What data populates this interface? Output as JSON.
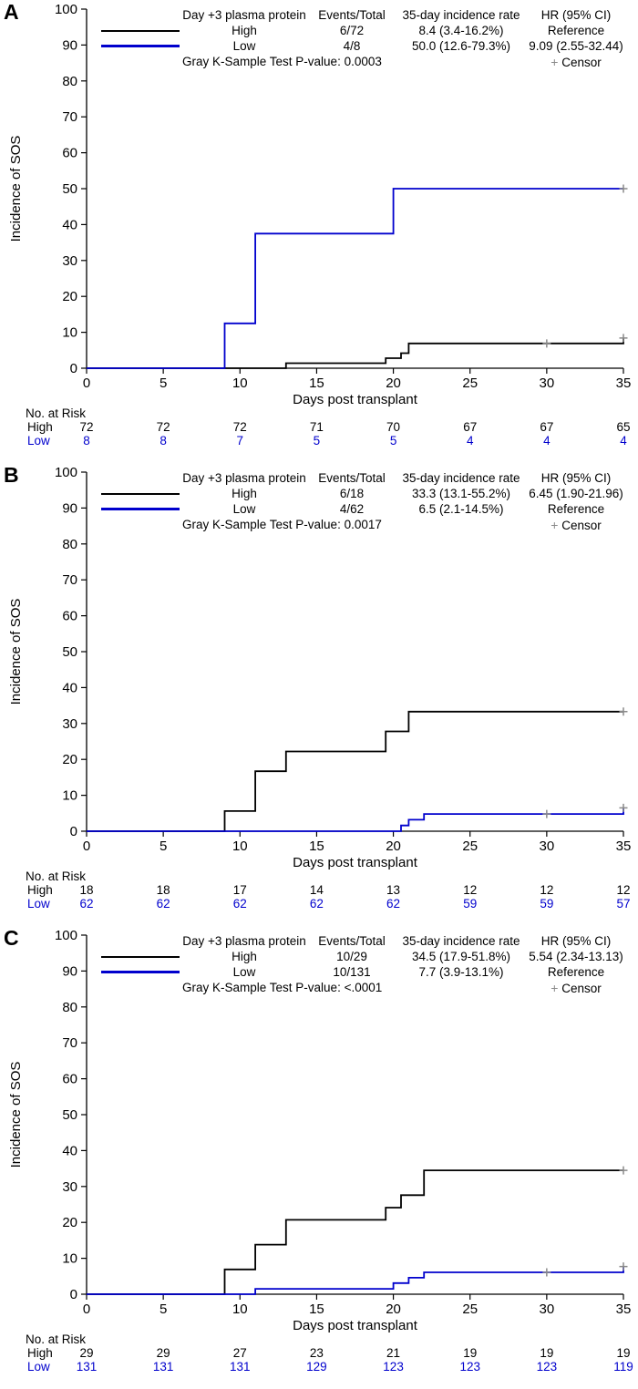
{
  "colors": {
    "high": "#000000",
    "low": "#0000cd",
    "censor": "#8a8a8a",
    "axis": "#000000"
  },
  "censor_marker": "+",
  "chart_data": [
    {
      "label": "A",
      "type": "line",
      "legend": {
        "header": [
          "Day +3 plasma protein",
          "Events/Total",
          "35-day incidence rate",
          "HR (95% CI)"
        ],
        "rows": [
          {
            "group": "High",
            "events_total": "6/72",
            "incidence": "8.4 (3.4-16.2%)",
            "hr": "Reference"
          },
          {
            "group": "Low",
            "events_total": "4/8",
            "incidence": "50.0 (12.6-79.3%)",
            "hr": "9.09 (2.55-32.44)"
          }
        ],
        "pvalue": "Gray K-Sample Test P-value: 0.0003",
        "censor_label": "Censor"
      },
      "chart": {
        "xlabel": "Days post transplant",
        "ylabel": "Incidence of SOS",
        "xlim": [
          0,
          35
        ],
        "ylim": [
          0,
          100
        ],
        "xticks": [
          0,
          5,
          10,
          15,
          20,
          25,
          30,
          35
        ],
        "yticks": [
          0,
          10,
          20,
          30,
          40,
          50,
          60,
          70,
          80,
          90,
          100
        ],
        "grid": false,
        "series": [
          {
            "name": "High",
            "color_key": "high",
            "points": [
              [
                0,
                0
              ],
              [
                13,
                1.4
              ],
              [
                19.5,
                2.8
              ],
              [
                20.5,
                4.2
              ],
              [
                21,
                6.9
              ],
              [
                35,
                8.4
              ]
            ],
            "censors": [
              [
                30,
                6.9
              ],
              [
                35,
                8.4
              ]
            ]
          },
          {
            "name": "Low",
            "color_key": "low",
            "points": [
              [
                0,
                0
              ],
              [
                9,
                12.5
              ],
              [
                11,
                37.5
              ],
              [
                20,
                50
              ],
              [
                35,
                50
              ]
            ],
            "censors": [
              [
                35,
                50
              ]
            ]
          }
        ]
      },
      "risk_table": {
        "title": "No. at Risk",
        "days": [
          0,
          5,
          10,
          15,
          20,
          25,
          30,
          35
        ],
        "rows": [
          {
            "label": "High",
            "color_key": "high",
            "values": [
              72,
              72,
              72,
              71,
              70,
              67,
              67,
              65
            ]
          },
          {
            "label": "Low",
            "color_key": "low",
            "values": [
              8,
              8,
              7,
              5,
              5,
              4,
              4,
              4
            ]
          }
        ]
      }
    },
    {
      "label": "B",
      "type": "line",
      "legend": {
        "header": [
          "Day +3 plasma protein",
          "Events/Total",
          "35-day incidence rate",
          "HR (95% CI)"
        ],
        "rows": [
          {
            "group": "High",
            "events_total": "6/18",
            "incidence": "33.3 (13.1-55.2%)",
            "hr": "6.45 (1.90-21.96)"
          },
          {
            "group": "Low",
            "events_total": "4/62",
            "incidence": "6.5 (2.1-14.5%)",
            "hr": "Reference"
          }
        ],
        "pvalue": "Gray K-Sample Test P-value: 0.0017",
        "censor_label": "Censor"
      },
      "chart": {
        "xlabel": "Days post transplant",
        "ylabel": "Incidence of SOS",
        "xlim": [
          0,
          35
        ],
        "ylim": [
          0,
          100
        ],
        "xticks": [
          0,
          5,
          10,
          15,
          20,
          25,
          30,
          35
        ],
        "yticks": [
          0,
          10,
          20,
          30,
          40,
          50,
          60,
          70,
          80,
          90,
          100
        ],
        "grid": false,
        "series": [
          {
            "name": "High",
            "color_key": "high",
            "points": [
              [
                0,
                0
              ],
              [
                9,
                5.6
              ],
              [
                11,
                16.7
              ],
              [
                13,
                22.2
              ],
              [
                19.5,
                27.8
              ],
              [
                21,
                33.3
              ],
              [
                35,
                33.3
              ]
            ],
            "censors": [
              [
                35,
                33.3
              ]
            ]
          },
          {
            "name": "Low",
            "color_key": "low",
            "points": [
              [
                0,
                0
              ],
              [
                20.5,
                1.6
              ],
              [
                21,
                3.2
              ],
              [
                22,
                4.8
              ],
              [
                35,
                6.5
              ]
            ],
            "censors": [
              [
                30,
                4.8
              ],
              [
                35,
                6.5
              ]
            ]
          }
        ]
      },
      "risk_table": {
        "title": "No. at Risk",
        "days": [
          0,
          5,
          10,
          15,
          20,
          25,
          30,
          35
        ],
        "rows": [
          {
            "label": "High",
            "color_key": "high",
            "values": [
              18,
              18,
              17,
              14,
              13,
              12,
              12,
              12
            ]
          },
          {
            "label": "Low",
            "color_key": "low",
            "values": [
              62,
              62,
              62,
              62,
              62,
              59,
              59,
              57
            ]
          }
        ]
      }
    },
    {
      "label": "C",
      "type": "line",
      "legend": {
        "header": [
          "Day +3 plasma protein",
          "Events/Total",
          "35-day incidence rate",
          "HR (95% CI)"
        ],
        "rows": [
          {
            "group": "High",
            "events_total": "10/29",
            "incidence": "34.5 (17.9-51.8%)",
            "hr": "5.54 (2.34-13.13)"
          },
          {
            "group": "Low",
            "events_total": "10/131",
            "incidence": "7.7 (3.9-13.1%)",
            "hr": "Reference"
          }
        ],
        "pvalue": "Gray K-Sample Test P-value: <.0001",
        "censor_label": "Censor"
      },
      "chart": {
        "xlabel": "Days post transplant",
        "ylabel": "Incidence of SOS",
        "xlim": [
          0,
          35
        ],
        "ylim": [
          0,
          100
        ],
        "xticks": [
          0,
          5,
          10,
          15,
          20,
          25,
          30,
          35
        ],
        "yticks": [
          0,
          10,
          20,
          30,
          40,
          50,
          60,
          70,
          80,
          90,
          100
        ],
        "grid": false,
        "series": [
          {
            "name": "High",
            "color_key": "high",
            "points": [
              [
                0,
                0
              ],
              [
                9,
                6.9
              ],
              [
                11,
                13.8
              ],
              [
                13,
                20.7
              ],
              [
                19.5,
                24.1
              ],
              [
                20.5,
                27.6
              ],
              [
                22,
                34.5
              ],
              [
                35,
                34.5
              ]
            ],
            "censors": [
              [
                35,
                34.5
              ]
            ]
          },
          {
            "name": "Low",
            "color_key": "low",
            "points": [
              [
                0,
                0
              ],
              [
                11,
                1.5
              ],
              [
                20,
                3.1
              ],
              [
                21,
                4.6
              ],
              [
                22,
                6.1
              ],
              [
                35,
                7.7
              ]
            ],
            "censors": [
              [
                30,
                6.1
              ],
              [
                35,
                7.7
              ]
            ]
          }
        ]
      },
      "risk_table": {
        "title": "No. at Risk",
        "days": [
          0,
          5,
          10,
          15,
          20,
          25,
          30,
          35
        ],
        "rows": [
          {
            "label": "High",
            "color_key": "high",
            "values": [
              29,
              29,
              27,
              23,
              21,
              19,
              19,
              19
            ]
          },
          {
            "label": "Low",
            "color_key": "low",
            "values": [
              131,
              131,
              131,
              129,
              123,
              123,
              123,
              119
            ]
          }
        ]
      }
    }
  ]
}
